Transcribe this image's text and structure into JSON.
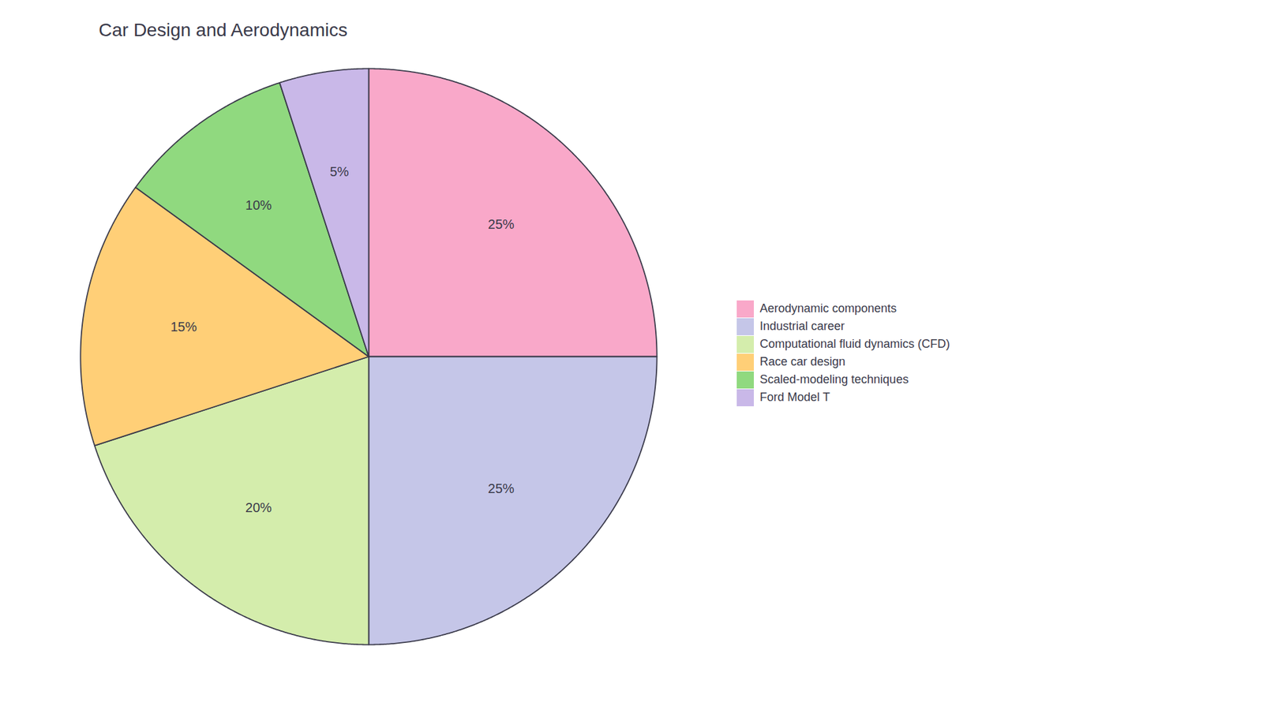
{
  "chart_data": {
    "type": "pie",
    "title": "Car Design and Aerodynamics",
    "categories": [
      "Aerodynamic components",
      "Industrial career",
      "Computational fluid dynamics (CFD)",
      "Race car design",
      "Scaled-modeling techniques",
      "Ford Model T"
    ],
    "values": [
      25,
      25,
      20,
      15,
      10,
      5
    ],
    "value_labels": [
      "25%",
      "25%",
      "20%",
      "15%",
      "10%",
      "5%"
    ],
    "colors": [
      "#F9A8C9",
      "#C5C6E8",
      "#D4EDAC",
      "#FFCF77",
      "#90D97F",
      "#C9B8E8"
    ],
    "data_labels": true,
    "legend": "right"
  }
}
